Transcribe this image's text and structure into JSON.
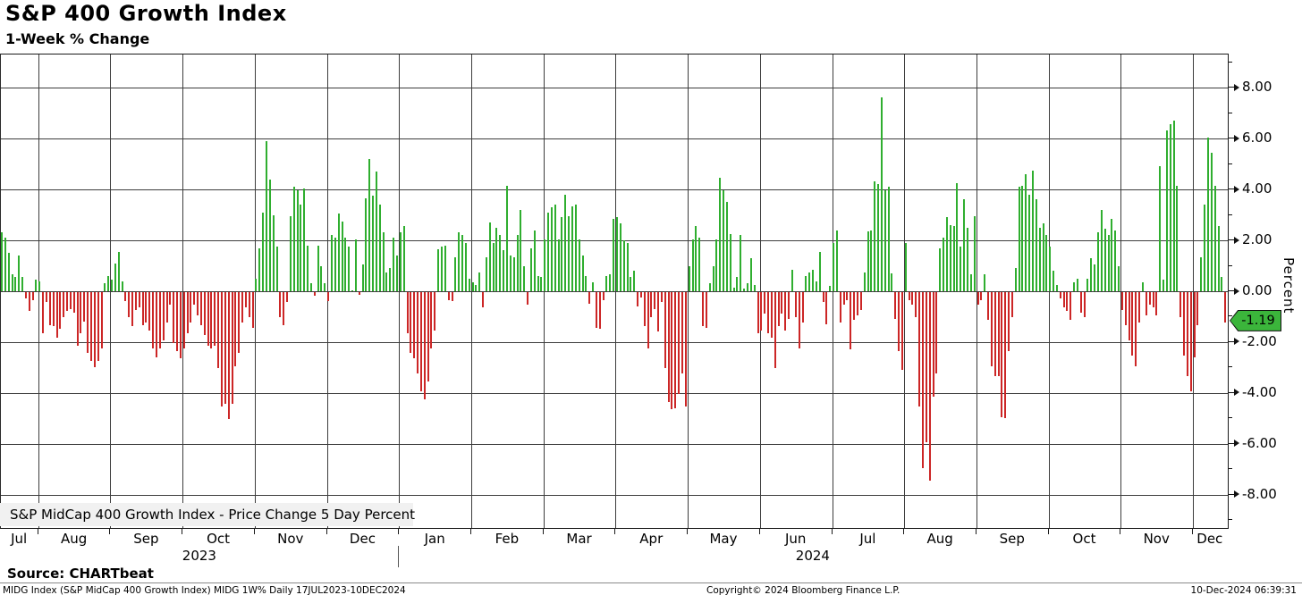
{
  "title": "S&P 400 Growth Index",
  "subtitle": "1-Week % Change",
  "source_label": "Source: CHARTbeat",
  "legend": {
    "swatch_color": "#33a333",
    "label": "S&P MidCap 400 Growth Index - Price Change 5 Day Percent"
  },
  "y_axis": {
    "label": "Percent",
    "ticks": [
      "8.00",
      "6.00",
      "4.00",
      "2.00",
      "0.00",
      "-2.00",
      "-4.00",
      "-6.00",
      "-8.00"
    ],
    "major_step": 2,
    "minor_step": 1
  },
  "last_value_badge": {
    "text": "-1.19",
    "value": -1.19,
    "color": "#3bb53b"
  },
  "colors": {
    "up": "#2fae2f",
    "down": "#cc2626",
    "grid": "#3d3d3d",
    "legend_bg": "#f1f1f1"
  },
  "footer": {
    "left": "MIDG Index (S&P MidCap 400 Growth Index) MIDG 1W%  Daily 17JUL2023-10DEC2024",
    "center": "Copyright© 2024 Bloomberg Finance L.P.",
    "right": "10-Dec-2024 06:39:31"
  },
  "chart_data": {
    "type": "bar",
    "title": "S&P 400 Growth Index",
    "subtitle": "1-Week % Change",
    "xlabel": "",
    "ylabel": "Percent",
    "ylim": [
      -9.3,
      9.3
    ],
    "grid": true,
    "legend_position": "bottom-left",
    "date_range": "17JUL2023-10DEC2024",
    "last_value": -1.19,
    "years": [
      {
        "label": "2023",
        "month_span": 6
      },
      {
        "label": "2024",
        "month_span": 12
      }
    ],
    "months": [
      {
        "label": "Jul",
        "count": 11
      },
      {
        "label": "Aug",
        "count": 21
      },
      {
        "label": "Sep",
        "count": 21
      },
      {
        "label": "Oct",
        "count": 21
      },
      {
        "label": "Nov",
        "count": 21
      },
      {
        "label": "Dec",
        "count": 21
      },
      {
        "label": "Jan",
        "count": 21
      },
      {
        "label": "Feb",
        "count": 21
      },
      {
        "label": "Mar",
        "count": 21
      },
      {
        "label": "Apr",
        "count": 21
      },
      {
        "label": "May",
        "count": 21
      },
      {
        "label": "Jun",
        "count": 21
      },
      {
        "label": "Jul",
        "count": 21
      },
      {
        "label": "Aug",
        "count": 21
      },
      {
        "label": "Sep",
        "count": 21
      },
      {
        "label": "Oct",
        "count": 21
      },
      {
        "label": "Nov",
        "count": 21
      },
      {
        "label": "Dec",
        "count": 10
      }
    ],
    "values": [
      2.3,
      2.1,
      1.5,
      0.65,
      0.55,
      1.4,
      0.55,
      -0.25,
      -0.75,
      -0.3,
      0.45,
      0.4,
      -1.6,
      -0.4,
      -1.3,
      -1.35,
      -1.8,
      -1.45,
      -1.0,
      -0.75,
      -0.65,
      -0.8,
      -2.1,
      -1.6,
      -1.15,
      -2.4,
      -2.7,
      -2.95,
      -2.7,
      -2.2,
      0.3,
      0.6,
      0.45,
      1.1,
      1.55,
      0.4,
      -0.35,
      -1.0,
      -1.35,
      -0.7,
      -0.6,
      -1.3,
      -1.2,
      -1.5,
      -2.2,
      -2.55,
      -2.2,
      -1.9,
      -1.2,
      -0.5,
      -2.0,
      -2.3,
      -2.6,
      -2.2,
      -1.6,
      -1.2,
      -0.5,
      -0.9,
      -1.3,
      -1.7,
      -2.1,
      -2.2,
      -2.1,
      -3.0,
      -4.5,
      -4.4,
      -5.0,
      -4.4,
      -2.9,
      -2.4,
      -1.2,
      -0.6,
      -1.0,
      -1.4,
      0.5,
      1.7,
      3.1,
      5.9,
      4.4,
      3.0,
      1.75,
      -1.0,
      -1.3,
      -0.4,
      2.95,
      4.1,
      3.95,
      3.4,
      4.05,
      1.8,
      0.3,
      -0.15,
      1.8,
      1.0,
      0.3,
      -0.35,
      2.2,
      2.1,
      3.05,
      2.75,
      2.1,
      1.75,
      0.05,
      2.05,
      -0.1,
      1.05,
      3.65,
      5.2,
      3.75,
      4.7,
      3.4,
      2.3,
      0.75,
      0.9,
      2.1,
      1.4,
      2.3,
      2.55,
      -1.6,
      -2.4,
      -2.6,
      -3.2,
      -3.9,
      -4.2,
      -3.5,
      -2.2,
      -1.5,
      1.65,
      1.75,
      1.8,
      -0.3,
      -0.35,
      1.35,
      2.3,
      2.2,
      1.9,
      0.5,
      0.35,
      0.25,
      0.75,
      -0.6,
      1.35,
      2.7,
      1.9,
      2.5,
      2.2,
      1.6,
      4.15,
      1.4,
      1.35,
      2.2,
      3.2,
      1.0,
      -0.5,
      1.7,
      2.4,
      0.6,
      0.55,
      2.05,
      3.1,
      3.3,
      3.4,
      2.05,
      2.9,
      3.8,
      2.95,
      3.35,
      3.4,
      2.05,
      1.4,
      0.6,
      -0.45,
      0.35,
      -1.4,
      -1.45,
      -0.3,
      0.6,
      0.65,
      2.85,
      2.9,
      2.65,
      2.0,
      1.9,
      0.55,
      0.8,
      -0.55,
      -0.2,
      -1.35,
      -2.2,
      -1.0,
      -0.65,
      -1.55,
      -0.4,
      -3.0,
      -4.3,
      -4.6,
      -4.55,
      -4.0,
      -3.2,
      -4.5,
      1.0,
      2.05,
      2.55,
      2.1,
      -1.35,
      -1.4,
      0.3,
      1.0,
      2.05,
      4.45,
      3.95,
      3.5,
      2.25,
      0.15,
      0.55,
      2.2,
      0.1,
      0.3,
      1.3,
      0.25,
      -1.6,
      -1.5,
      -0.85,
      -1.6,
      -1.8,
      -3.0,
      -1.35,
      -0.85,
      -1.5,
      -1.05,
      0.85,
      -1.0,
      -2.2,
      -1.2,
      0.6,
      0.75,
      0.85,
      0.4,
      1.55,
      -0.4,
      -1.25,
      0.2,
      1.9,
      2.4,
      -1.2,
      -0.5,
      -0.3,
      -2.25,
      -1.1,
      -0.9,
      -0.7,
      0.75,
      2.35,
      2.4,
      4.3,
      4.2,
      7.6,
      3.95,
      4.1,
      0.7,
      -1.05,
      -2.3,
      -3.05,
      1.9,
      -0.3,
      -0.5,
      -1.0,
      -4.5,
      -6.9,
      -5.9,
      -7.4,
      -4.1,
      -3.2,
      1.7,
      2.1,
      2.9,
      2.6,
      2.55,
      4.25,
      1.75,
      3.6,
      2.5,
      0.65,
      2.95,
      -0.5,
      -0.3,
      0.65,
      -1.1,
      -2.9,
      -3.3,
      -3.3,
      -4.9,
      -4.95,
      -2.3,
      -1.0,
      0.9,
      4.1,
      4.15,
      4.6,
      3.8,
      4.75,
      3.6,
      2.5,
      2.65,
      2.2,
      1.75,
      0.8,
      0.25,
      -0.25,
      -0.6,
      -0.75,
      -1.1,
      0.35,
      0.5,
      -0.8,
      -1.0,
      0.5,
      1.3,
      1.05,
      2.3,
      3.2,
      2.45,
      2.2,
      2.85,
      2.4,
      1.0,
      -0.7,
      -1.3,
      -1.9,
      -2.5,
      -2.9,
      -1.2,
      0.35,
      -0.9,
      -0.5,
      -0.6,
      -0.9,
      4.9,
      0.45,
      6.3,
      6.55,
      6.7,
      4.15,
      -1.0,
      -2.5,
      -3.3,
      -3.9,
      -2.55,
      -1.3,
      1.35,
      3.4,
      6.05,
      5.45,
      4.15,
      2.55,
      0.55,
      -1.19
    ]
  }
}
